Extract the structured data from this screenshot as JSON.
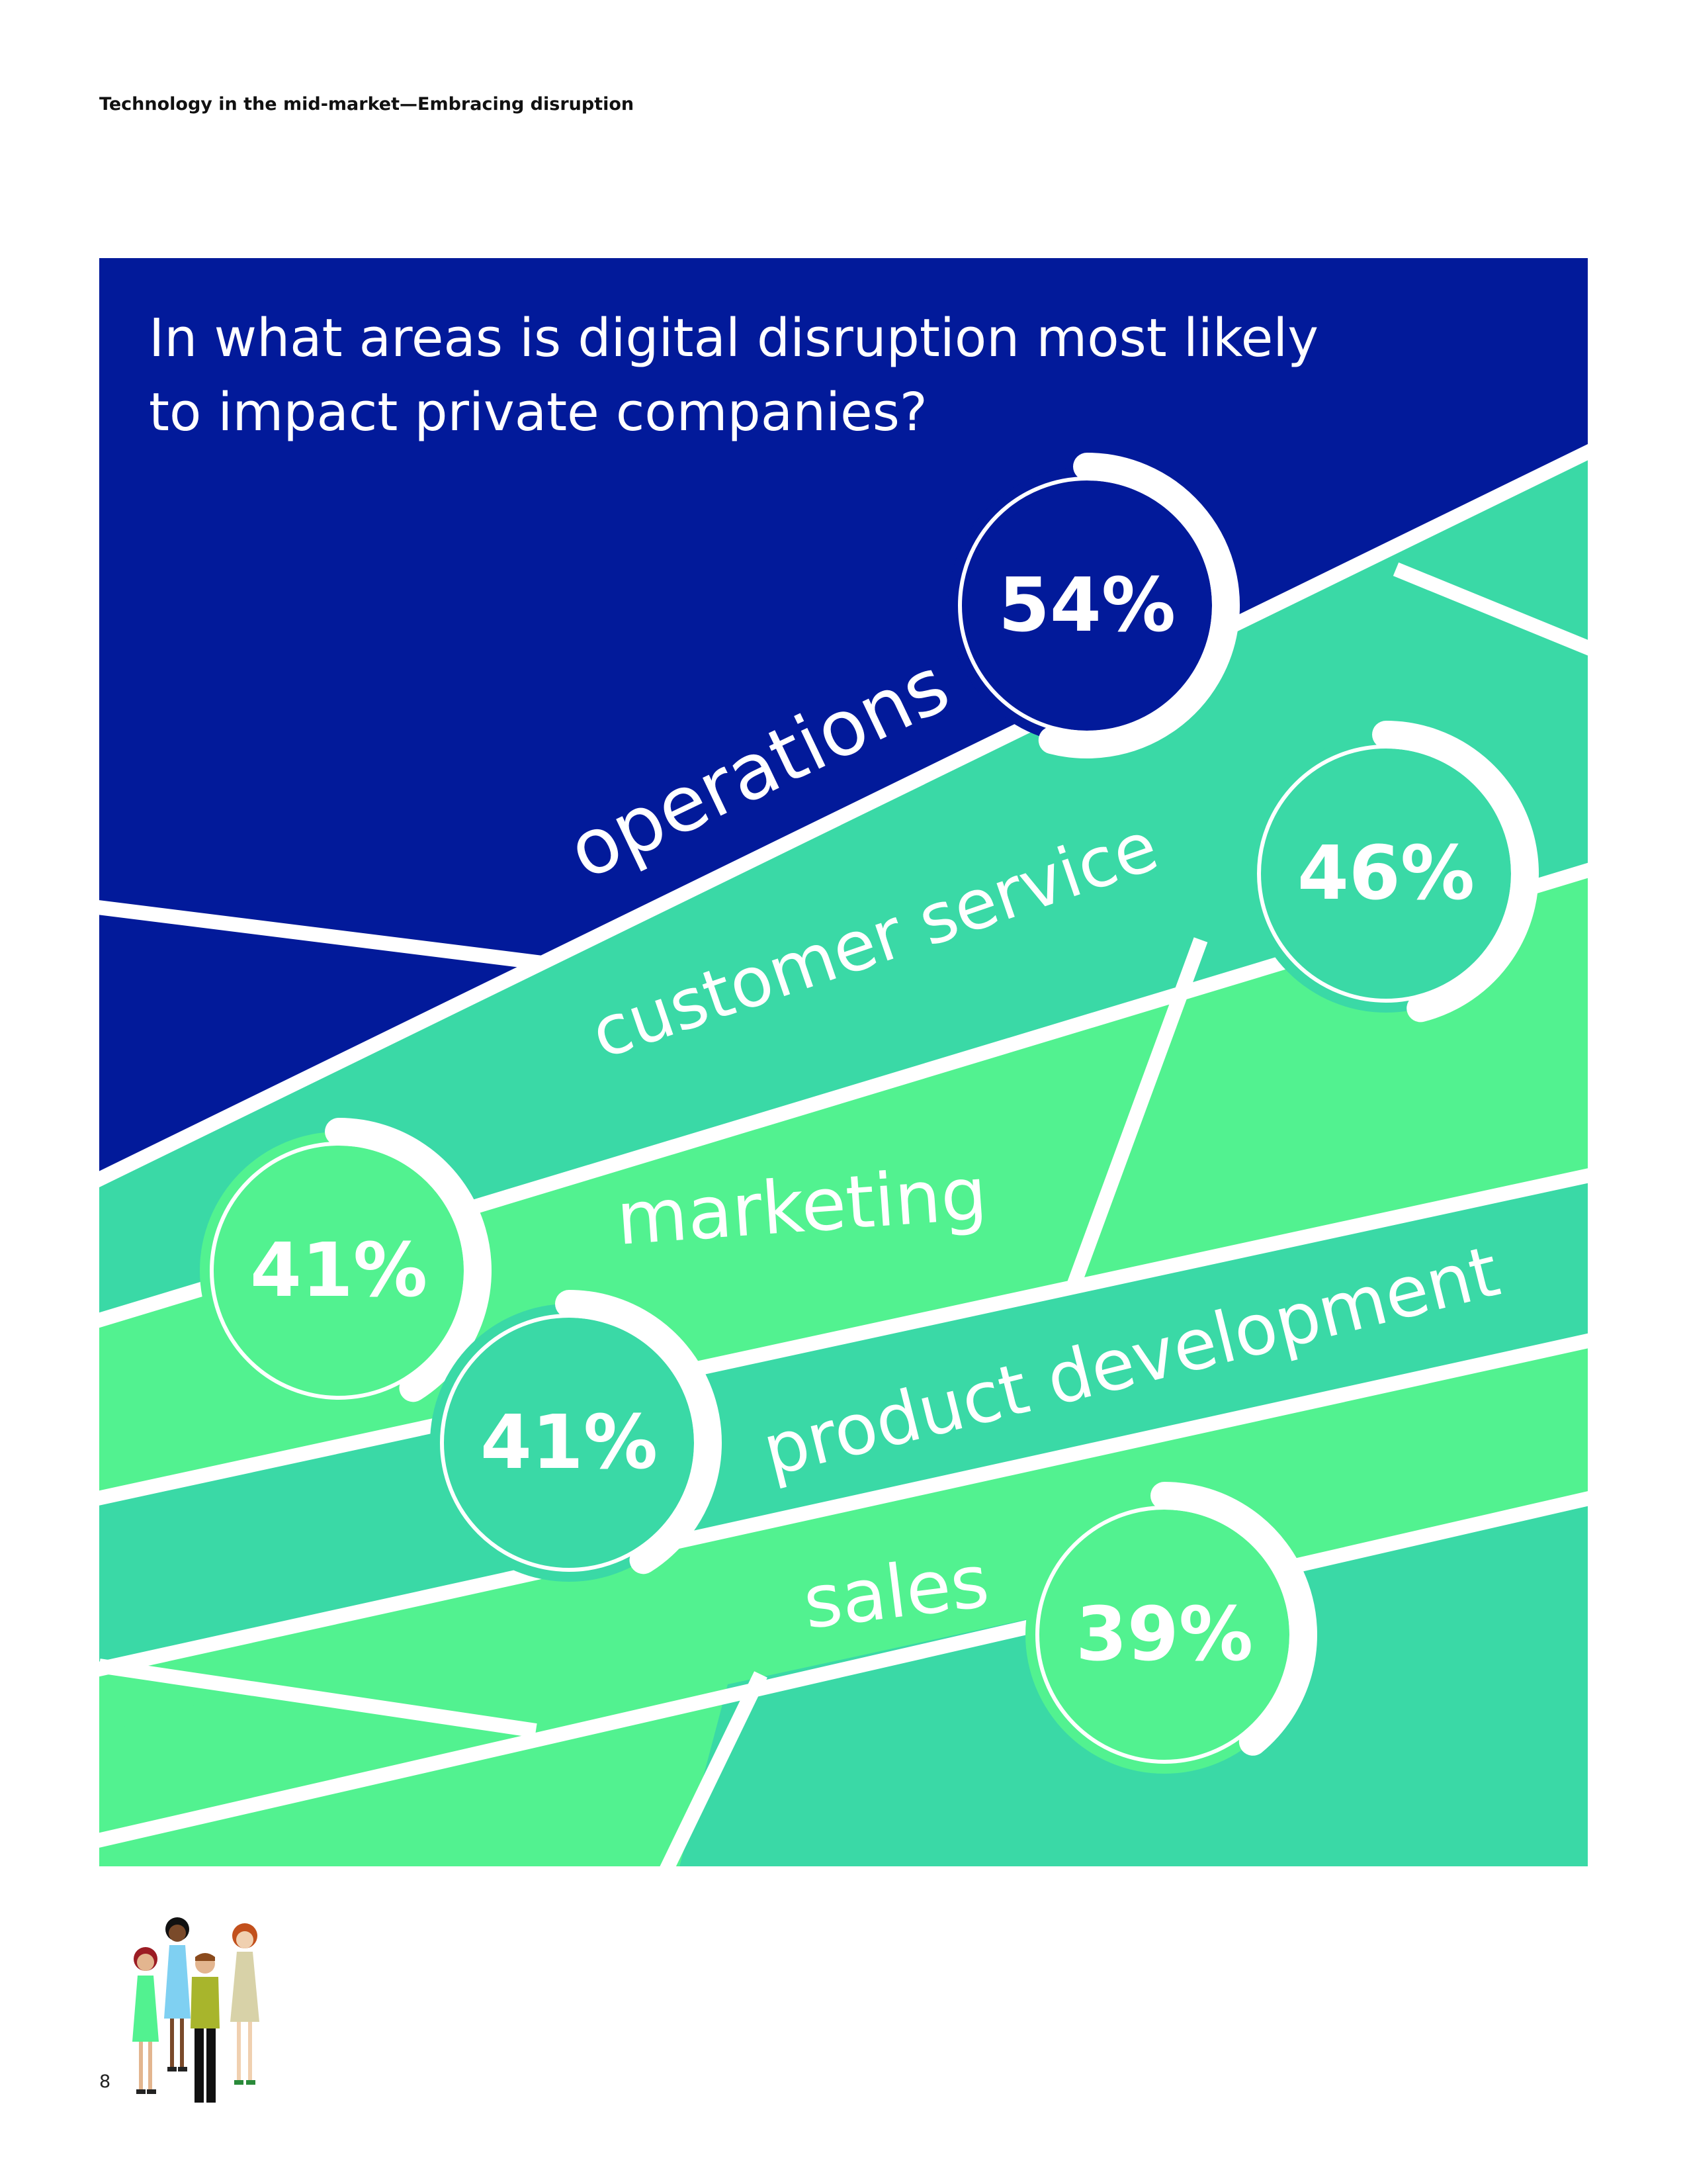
{
  "header": "Technology in the mid-market—Embracing disruption",
  "page_number": "8",
  "chart_data": {
    "type": "bar",
    "title": "In what areas is digital disruption most likely to impact private companies?",
    "title_lines": [
      "In what areas is digital disruption most likely",
      "to impact private companies?"
    ],
    "unit": "%",
    "categories": [
      "operations",
      "customer service",
      "marketing",
      "product development",
      "sales"
    ],
    "values": [
      54,
      46,
      41,
      41,
      39
    ],
    "value_labels": [
      "54%",
      "46%",
      "41%",
      "41%",
      "39%"
    ],
    "ylim": [
      0,
      100
    ]
  },
  "colors": {
    "navy": "#021a9a",
    "teal": "#3ad9a6",
    "light_green": "#52f290",
    "white": "#ffffff"
  },
  "icons": [
    "people-group-icon"
  ]
}
